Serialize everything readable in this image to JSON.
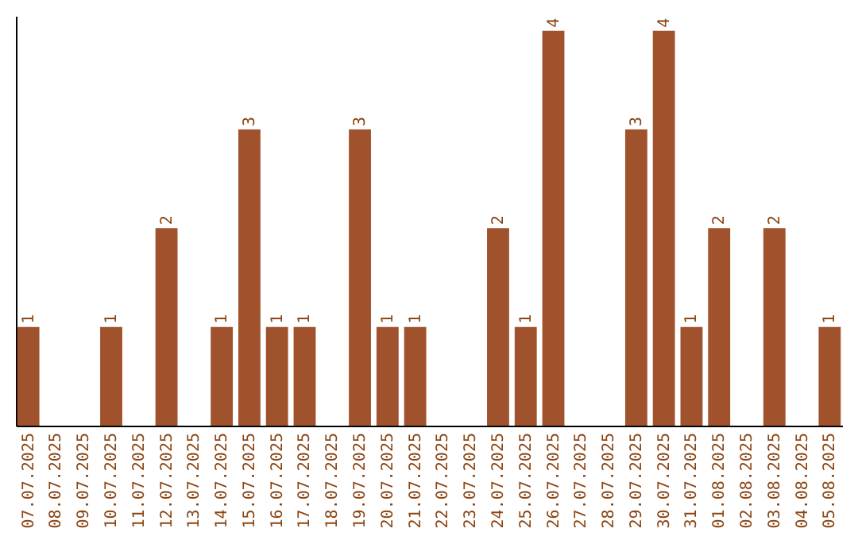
{
  "chart_data": {
    "type": "bar",
    "categories": [
      "07.07.2025",
      "08.07.2025",
      "09.07.2025",
      "10.07.2025",
      "11.07.2025",
      "12.07.2025",
      "13.07.2025",
      "14.07.2025",
      "15.07.2025",
      "16.07.2025",
      "17.07.2025",
      "18.07.2025",
      "19.07.2025",
      "20.07.2025",
      "21.07.2025",
      "22.07.2025",
      "23.07.2025",
      "24.07.2025",
      "25.07.2025",
      "26.07.2025",
      "27.07.2025",
      "28.07.2025",
      "29.07.2025",
      "30.07.2025",
      "31.07.2025",
      "01.08.2025",
      "02.08.2025",
      "03.08.2025",
      "04.08.2025",
      "05.08.2025"
    ],
    "values": [
      1,
      0,
      0,
      1,
      0,
      2,
      0,
      1,
      3,
      1,
      1,
      0,
      3,
      1,
      1,
      0,
      0,
      2,
      1,
      4,
      0,
      0,
      3,
      4,
      1,
      2,
      0,
      2,
      0,
      1
    ],
    "value_labels": [
      "1",
      null,
      null,
      "1",
      null,
      "2",
      null,
      "1",
      "3",
      "1",
      "1",
      null,
      "3",
      "1",
      "1",
      null,
      null,
      "2",
      "1",
      "4",
      null,
      null,
      "3",
      "4",
      "1",
      "2",
      null,
      "2",
      null,
      "1"
    ],
    "color": "#a0522d",
    "ylim": [
      0,
      4.15
    ],
    "grid": false,
    "tick_labels": "x"
  }
}
